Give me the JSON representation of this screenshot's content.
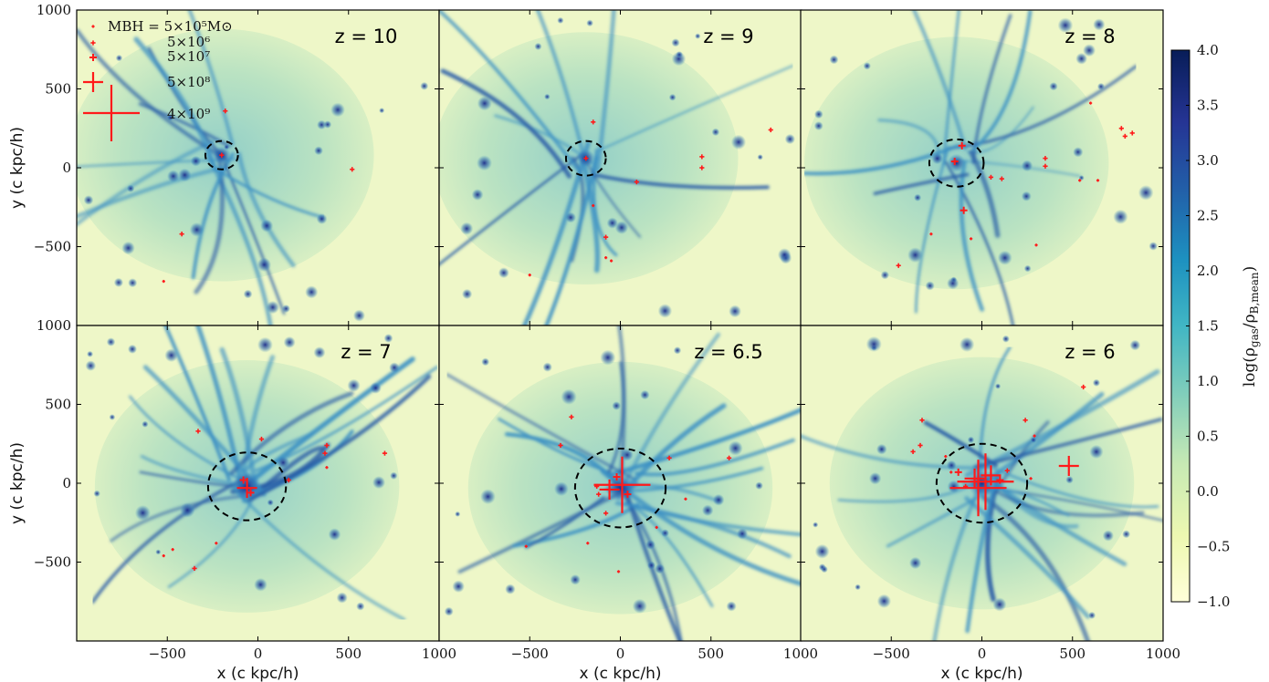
{
  "chart_data": {
    "type": "heatmap",
    "panels": [
      {
        "label": "z = 10",
        "halo_circle": {
          "cx": -200,
          "cy": 80,
          "r": 90
        },
        "black_holes": [
          [
            -200,
            80,
            5000000.0
          ],
          [
            -180,
            360,
            5000000.0
          ],
          [
            -420,
            -420,
            5000000.0
          ],
          [
            520,
            -10,
            5000000.0
          ],
          [
            -520,
            -720,
            500000.0
          ]
        ]
      },
      {
        "label": "z = 9",
        "halo_circle": {
          "cx": -190,
          "cy": 60,
          "r": 110
        },
        "black_holes": [
          [
            -190,
            60,
            5000000.0
          ],
          [
            -150,
            290,
            5000000.0
          ],
          [
            90,
            -90,
            5000000.0
          ],
          [
            450,
            70,
            5000000.0
          ],
          [
            450,
            0,
            5000000.0
          ],
          [
            -80,
            -440,
            5000000.0
          ],
          [
            -150,
            -240,
            500000.0
          ],
          [
            -500,
            -680,
            500000.0
          ],
          [
            -80,
            -570,
            500000.0
          ],
          [
            830,
            240,
            5000000.0
          ],
          [
            -50,
            -590,
            500000.0
          ]
        ]
      },
      {
        "label": "z = 8",
        "halo_circle": {
          "cx": -140,
          "cy": 30,
          "r": 150
        },
        "black_holes": [
          [
            -150,
            40,
            50000000.0
          ],
          [
            -110,
            140,
            50000000.0
          ],
          [
            -100,
            -270,
            50000000.0
          ],
          [
            110,
            -70,
            5000000.0
          ],
          [
            50,
            -60,
            5000000.0
          ],
          [
            350,
            60,
            5000000.0
          ],
          [
            350,
            10,
            5000000.0
          ],
          [
            600,
            410,
            500000.0
          ],
          [
            770,
            250,
            5000000.0
          ],
          [
            790,
            200,
            5000000.0
          ],
          [
            830,
            220,
            5000000.0
          ],
          [
            -280,
            -420,
            500000.0
          ],
          [
            -460,
            -620,
            5000000.0
          ],
          [
            -60,
            -450,
            500000.0
          ],
          [
            300,
            -490,
            500000.0
          ],
          [
            640,
            -80,
            500000.0
          ],
          [
            540,
            -80,
            500000.0
          ]
        ]
      },
      {
        "label": "z = 7",
        "halo_circle": {
          "cx": -60,
          "cy": -20,
          "r": 215
        },
        "black_holes": [
          [
            -60,
            -30,
            500000000.0
          ],
          [
            -80,
            20,
            50000000.0
          ],
          [
            -40,
            -60,
            50000000.0
          ],
          [
            20,
            280,
            5000000.0
          ],
          [
            170,
            20,
            5000000.0
          ],
          [
            380,
            240,
            5000000.0
          ],
          [
            370,
            190,
            5000000.0
          ],
          [
            700,
            190,
            5000000.0
          ],
          [
            -330,
            330,
            5000000.0
          ],
          [
            -350,
            -540,
            5000000.0
          ],
          [
            -520,
            -460,
            500000.0
          ],
          [
            -230,
            -380,
            500000.0
          ],
          [
            380,
            100,
            500000.0
          ],
          [
            -470,
            -420,
            500000.0
          ]
        ]
      },
      {
        "label": "z = 6.5",
        "halo_circle": {
          "cx": 0,
          "cy": -30,
          "r": 250
        },
        "black_holes": [
          [
            10,
            -10,
            4000000000.0
          ],
          [
            -60,
            -40,
            500000000.0
          ],
          [
            -20,
            40,
            50000000.0
          ],
          [
            40,
            -70,
            50000000.0
          ],
          [
            -120,
            -70,
            5000000.0
          ],
          [
            -80,
            -190,
            5000000.0
          ],
          [
            -130,
            -20,
            5000000.0
          ],
          [
            270,
            160,
            5000000.0
          ],
          [
            600,
            160,
            5000000.0
          ],
          [
            -330,
            240,
            5000000.0
          ],
          [
            -270,
            420,
            5000000.0
          ],
          [
            -10,
            -560,
            500000.0
          ],
          [
            -180,
            -380,
            500000.0
          ],
          [
            -520,
            -400,
            500000.0
          ],
          [
            200,
            -280,
            500000.0
          ],
          [
            360,
            -100,
            500000.0
          ]
        ]
      },
      {
        "label": "z = 6",
        "halo_circle": {
          "cx": 0,
          "cy": 0,
          "r": 250
        },
        "black_holes": [
          [
            -20,
            -30,
            4000000000.0
          ],
          [
            20,
            10,
            4000000000.0
          ],
          [
            -40,
            30,
            500000000.0
          ],
          [
            50,
            50,
            500000000.0
          ],
          [
            480,
            110,
            500000000.0
          ],
          [
            100,
            20,
            50000000.0
          ],
          [
            -130,
            70,
            50000000.0
          ],
          [
            -90,
            -20,
            5000000.0
          ],
          [
            -330,
            400,
            5000000.0
          ],
          [
            -340,
            240,
            5000000.0
          ],
          [
            -380,
            200,
            5000000.0
          ],
          [
            240,
            400,
            5000000.0
          ],
          [
            560,
            610,
            5000000.0
          ],
          [
            290,
            300,
            500000.0
          ],
          [
            -170,
            70,
            500000.0
          ],
          [
            -200,
            170,
            500000.0
          ],
          [
            270,
            30,
            500000.0
          ],
          [
            140,
            80,
            5000000.0
          ]
        ]
      }
    ],
    "x_range": [
      -1000,
      1000
    ],
    "y_range": [
      -1000,
      1000
    ],
    "x_ticks": [
      -500,
      0,
      500,
      1000
    ],
    "y_ticks": [
      -500,
      0,
      500,
      1000
    ],
    "xlabel": "x (c kpc/h)",
    "ylabel": "y (c kpc/h)",
    "colorbar": {
      "label": "log(ρgas/ρB,mean)",
      "range": [
        -1.0,
        4.0
      ],
      "ticks": [
        -1.0,
        -0.5,
        0.0,
        0.5,
        1.0,
        1.5,
        2.0,
        2.5,
        3.0,
        3.5,
        4.0
      ],
      "tick_labels": [
        "−1.0",
        "−0.5",
        "0.0",
        "0.5",
        "1.0",
        "1.5",
        "2.0",
        "2.5",
        "3.0",
        "3.5",
        "4.0"
      ],
      "colormap": [
        "#ffffd9",
        "#edf8b1",
        "#c7e9b4",
        "#7fcdbb",
        "#41b6c4",
        "#1d91c0",
        "#225ea8",
        "#253494",
        "#081d58"
      ]
    },
    "legend": {
      "placement": "top-left",
      "entries": [
        {
          "label": "MBH = 5×10⁵M⊙",
          "mass": 500000.0
        },
        {
          "label": "5×10⁶",
          "mass": 5000000.0
        },
        {
          "label": "5×10⁷",
          "mass": 50000000.0
        },
        {
          "label": "5×10⁸",
          "mass": 500000000.0
        },
        {
          "label": "4×10⁹",
          "mass": 4000000000.0
        }
      ]
    },
    "colors": {
      "bh": "#ff1a1a",
      "circle": "#000000"
    }
  }
}
